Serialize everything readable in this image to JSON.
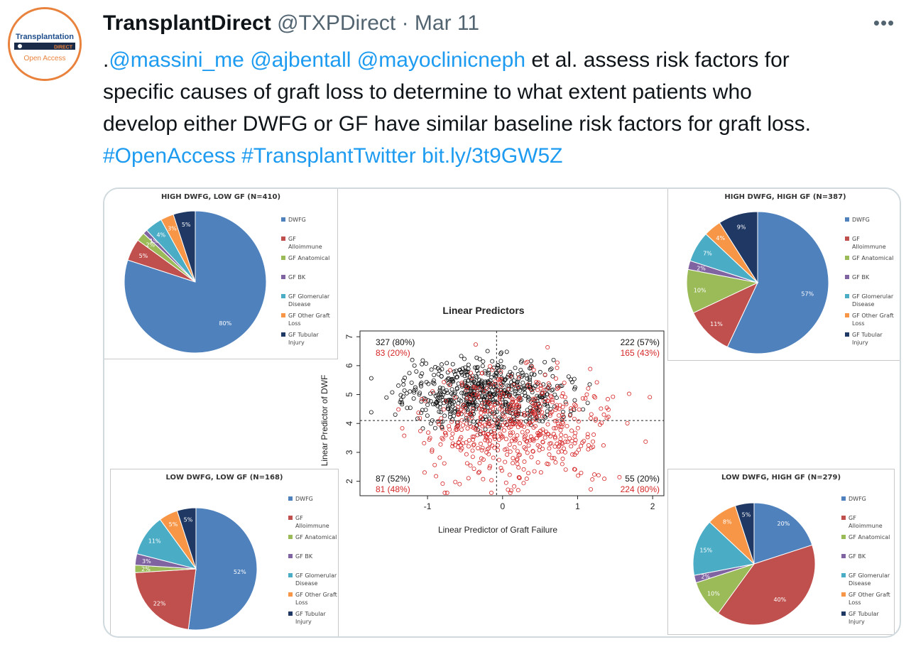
{
  "avatar": {
    "line1": "Transplantation",
    "line2": "DIRECT",
    "line3": "Open Access"
  },
  "header": {
    "name": "TransplantDirect",
    "handle": "@TXPDirect",
    "separator": "·",
    "date": "Mar 11",
    "more_label": "•••"
  },
  "tweet": {
    "lead": ".",
    "mentions": [
      "@massini_me",
      "@ajbentall",
      "@mayoclinicneph"
    ],
    "body1": " et al. assess risk factors for",
    "body2": "specific causes of graft loss to determine to what extent patients who",
    "body3": "develop either DWFG or GF have similar baseline risk factors for graft loss.",
    "hashtag1": "#OpenAccess",
    "hashtag2": "#TransplantTwitter",
    "link": "bit.ly/3t9GW5Z"
  },
  "colors": {
    "link": "#1d9bf0",
    "DWFG": "#4f81bd",
    "GF Alloimmune": "#c0504d",
    "GF Anatomical": "#9bbb59",
    "GF BK": "#8064a2",
    "GF Glomerular Disease": "#4bacc6",
    "GF Other Graft Loss": "#f79646",
    "GF Tubular Injury": "#1f3864"
  },
  "legend_labels": [
    [
      "DWFG"
    ],
    [
      "GF",
      "Alloimmune"
    ],
    [
      "GF Anatomical"
    ],
    [
      "GF BK"
    ],
    [
      "GF Glomerular",
      "Disease"
    ],
    [
      "GF Other Graft",
      "Loss"
    ],
    [
      "GF Tubular",
      "Injury"
    ]
  ],
  "chart_data": [
    {
      "type": "pie",
      "title": "HIGH DWFG, LOW GF (N=410)",
      "categories": [
        "DWFG",
        "GF Alloimmune",
        "GF Anatomical",
        "GF BK",
        "GF Glomerular Disease",
        "GF Other Graft Loss",
        "GF Tubular Injury"
      ],
      "values": [
        80,
        5,
        2,
        1,
        4,
        3,
        5
      ],
      "labels": [
        "80%",
        "5%",
        "2%",
        "1%",
        "4%",
        "3%",
        "5%"
      ]
    },
    {
      "type": "pie",
      "title": "HIGH DWFG, HIGH GF (N=387)",
      "categories": [
        "DWFG",
        "GF Alloimmune",
        "GF Anatomical",
        "GF BK",
        "GF Glomerular Disease",
        "GF Other Graft Loss",
        "GF Tubular Injury"
      ],
      "values": [
        57,
        11,
        10,
        2,
        7,
        4,
        9
      ],
      "labels": [
        "57%",
        "11%",
        "10%",
        "2%",
        "7%",
        "4%",
        "9%"
      ]
    },
    {
      "type": "pie",
      "title": "LOW DWFG, LOW GF (N=168)",
      "categories": [
        "DWFG",
        "GF Alloimmune",
        "GF Anatomical",
        "GF BK",
        "GF Glomerular Disease",
        "GF Other Graft Loss",
        "GF Tubular Injury"
      ],
      "values": [
        52,
        22,
        2,
        3,
        11,
        5,
        5
      ],
      "labels": [
        "52%",
        "22%",
        "2%",
        "3%",
        "11%",
        "5%",
        "5%"
      ]
    },
    {
      "type": "pie",
      "title": "LOW DWFG, HIGH GF (N=279)",
      "categories": [
        "DWFG",
        "GF Alloimmune",
        "GF Anatomical",
        "GF BK",
        "GF Glomerular Disease",
        "GF Other Graft Loss",
        "GF Tubular Injury"
      ],
      "values": [
        20,
        40,
        10,
        2,
        15,
        8,
        5
      ],
      "labels": [
        "20%",
        "40%",
        "10%",
        "2%",
        "15%",
        "8%",
        "5%"
      ]
    },
    {
      "type": "scatter",
      "title": "Linear Predictors",
      "xlabel": "Linear Predictor of Graft Failure",
      "ylabel": "Linear Predictor of DWF",
      "xlim": [
        -1.9,
        2.15
      ],
      "ylim": [
        1.5,
        7.2
      ],
      "xticks": [
        -1,
        0,
        1,
        2
      ],
      "yticks": [
        2,
        3,
        4,
        5,
        6,
        7
      ],
      "cutoffs": {
        "x": -0.08,
        "y": 4.1
      },
      "series": [
        {
          "color": "#111111"
        },
        {
          "color": "#d62728"
        }
      ],
      "quadrant_counts": {
        "top_left": [
          "327 (80%)",
          "83 (20%)"
        ],
        "top_right": [
          "222 (57%)",
          "165 (43%)"
        ],
        "bottom_left": [
          "87 (52%)",
          "81 (48%)"
        ],
        "bottom_right": [
          "55 (20%)",
          "224 (80%)"
        ]
      }
    }
  ]
}
